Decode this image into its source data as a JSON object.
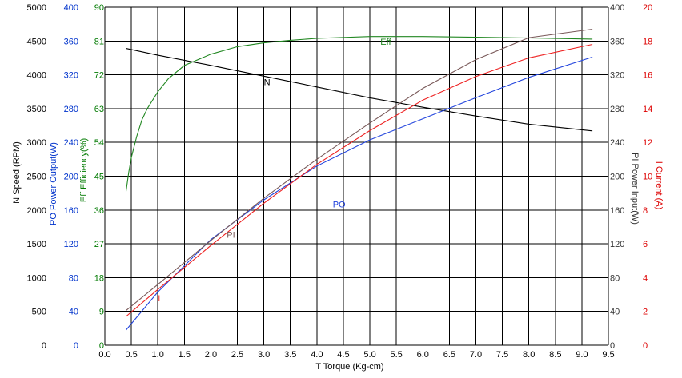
{
  "chart_data": {
    "type": "line",
    "xlabel": "T    Torque (Kg-cm)",
    "xlim": [
      0,
      9.5
    ],
    "x_ticks": [
      "0.0",
      "0.5",
      "1.0",
      "1.5",
      "2.0",
      "2.5",
      "3.0",
      "3.5",
      "4.0",
      "4.5",
      "5.0",
      "5.5",
      "6.0",
      "6.5",
      "7.0",
      "7.5",
      "8.0",
      "8.5",
      "9.0",
      "9.5"
    ],
    "grid": true,
    "axes": {
      "speed": {
        "label": "N   Speed (RPM)",
        "min": 0,
        "max": 5000,
        "side": "left",
        "color": "#000000",
        "ticks": [
          "0",
          "500",
          "1000",
          "1500",
          "2000",
          "2500",
          "3000",
          "3500",
          "4000",
          "4500",
          "5000"
        ]
      },
      "po": {
        "label": "PO   Power Output(W)",
        "min": 0,
        "max": 400,
        "side": "left",
        "color": "#0033cc",
        "ticks": [
          "0",
          "40",
          "80",
          "120",
          "160",
          "200",
          "240",
          "280",
          "320",
          "360",
          "400"
        ]
      },
      "eff": {
        "label": "Eff  Efficiency(%)",
        "min": 0,
        "max": 90,
        "side": "left",
        "color": "#007a00",
        "ticks": [
          "0",
          "9",
          "18",
          "27",
          "36",
          "45",
          "54",
          "63",
          "72",
          "81",
          "90"
        ]
      },
      "pi": {
        "label": "PI   Power Input(W)",
        "min": 0,
        "max": 400,
        "side": "right",
        "color": "#333333",
        "ticks": [
          "0",
          "40",
          "80",
          "120",
          "160",
          "200",
          "240",
          "280",
          "320",
          "360",
          "400"
        ]
      },
      "current": {
        "label": "I    Current (A)",
        "min": 0,
        "max": 20,
        "side": "right",
        "color": "#dd0000",
        "ticks": [
          "0",
          "2",
          "4",
          "6",
          "8",
          "10",
          "12",
          "14",
          "16",
          "18",
          "20"
        ]
      }
    },
    "series": [
      {
        "name": "N",
        "axis": "speed",
        "color": "#000000",
        "label_at": [
          3.0,
          3850
        ],
        "x": [
          0.4,
          1.0,
          2.0,
          3.0,
          4.0,
          5.0,
          6.0,
          7.0,
          8.0,
          9.2
        ],
        "y": [
          4390,
          4290,
          4140,
          3980,
          3820,
          3660,
          3520,
          3390,
          3270,
          3170
        ]
      },
      {
        "name": "PO",
        "axis": "po",
        "color": "#2244dd",
        "label_at": [
          4.3,
          163
        ],
        "x": [
          0.4,
          1.0,
          2.0,
          3.0,
          4.0,
          5.0,
          6.0,
          7.0,
          8.0,
          9.2
        ],
        "y": [
          18,
          63,
          125,
          172,
          212,
          243,
          268,
          293,
          317,
          341
        ]
      },
      {
        "name": "Eff",
        "axis": "eff",
        "color": "#228822",
        "label_at": [
          5.2,
          80
        ],
        "x": [
          0.4,
          0.45,
          0.5,
          0.6,
          0.7,
          0.8,
          1.0,
          1.2,
          1.5,
          2.0,
          2.5,
          3.0,
          3.5,
          4.0,
          5.0,
          6.0,
          7.0,
          8.0,
          9.2
        ],
        "y": [
          41,
          46,
          50,
          55.5,
          60,
          63,
          67.5,
          71,
          74.5,
          77.5,
          79.5,
          80.5,
          81.2,
          81.7,
          82.2,
          82.2,
          82.0,
          81.8,
          81.5
        ]
      },
      {
        "name": "PI",
        "axis": "pi",
        "color": "#7a5a5a",
        "label_at": [
          2.3,
          127
        ],
        "x": [
          0.4,
          1.0,
          2.0,
          3.0,
          4.0,
          5.0,
          6.0,
          7.0,
          8.0,
          9.2
        ],
        "y": [
          41,
          72,
          124,
          174,
          220,
          263,
          304,
          338,
          364,
          374
        ]
      },
      {
        "name": "I",
        "axis": "current",
        "color": "#ee2222",
        "label_at": [
          1.0,
          2.6
        ],
        "x": [
          0.4,
          1.0,
          2.0,
          3.0,
          4.0,
          5.0,
          6.0,
          7.0,
          8.0,
          9.2
        ],
        "y": [
          1.7,
          3.3,
          5.9,
          8.4,
          10.7,
          12.7,
          14.5,
          15.9,
          17.0,
          17.8
        ]
      }
    ]
  }
}
